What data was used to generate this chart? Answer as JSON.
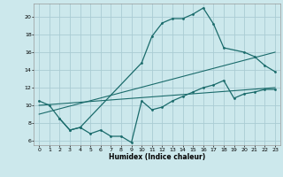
{
  "xlabel": "Humidex (Indice chaleur)",
  "bg_color": "#cce8ec",
  "grid_color": "#aaccd4",
  "line_color": "#1a6b6b",
  "xlim": [
    -0.5,
    23.5
  ],
  "ylim": [
    5.5,
    21.5
  ],
  "yticks": [
    6,
    8,
    10,
    12,
    14,
    16,
    18,
    20
  ],
  "xticks": [
    0,
    1,
    2,
    3,
    4,
    5,
    6,
    7,
    8,
    9,
    10,
    11,
    12,
    13,
    14,
    15,
    16,
    17,
    18,
    19,
    20,
    21,
    22,
    23
  ],
  "line1_x": [
    0,
    1,
    2,
    3,
    4,
    10,
    11,
    12,
    13,
    14,
    15,
    16,
    17,
    18,
    20,
    21,
    22,
    23
  ],
  "line1_y": [
    10.5,
    10.0,
    8.5,
    7.2,
    7.5,
    14.8,
    17.8,
    19.3,
    19.8,
    19.8,
    20.3,
    21.0,
    19.2,
    16.5,
    16.0,
    15.5,
    14.5,
    13.8
  ],
  "line2_x": [
    0,
    23
  ],
  "line2_y": [
    10.0,
    12.0
  ],
  "line3_x": [
    0,
    23
  ],
  "line3_y": [
    9.0,
    16.0
  ],
  "line4_x": [
    2,
    3,
    4,
    5,
    6,
    7,
    8,
    9,
    10,
    11,
    12,
    13,
    14,
    15,
    16,
    17,
    18,
    19,
    20,
    21,
    22,
    23
  ],
  "line4_y": [
    8.5,
    7.2,
    7.5,
    6.8,
    7.2,
    6.5,
    6.5,
    5.8,
    10.5,
    9.5,
    9.8,
    10.5,
    11.0,
    11.5,
    12.0,
    12.3,
    12.8,
    10.8,
    11.3,
    11.5,
    11.8,
    11.8
  ]
}
